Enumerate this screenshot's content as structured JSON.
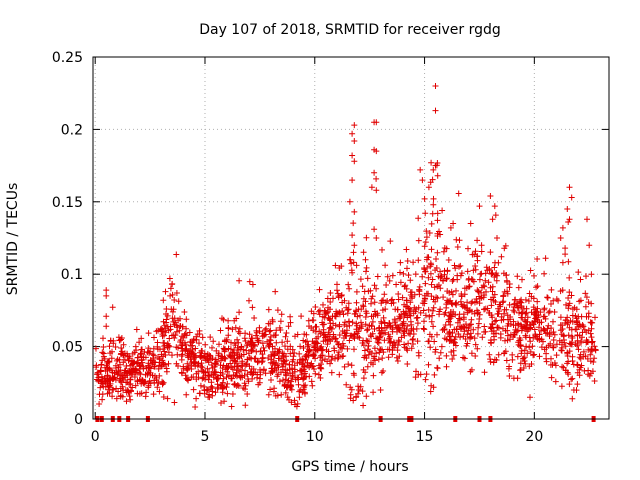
{
  "chart_data": {
    "type": "scatter",
    "title": "Day 107 of 2018, SRMTID for receiver rgdg",
    "xlabel": "GPS time / hours",
    "ylabel": "SRMTID / TECUs",
    "xlim": [
      -0.1,
      23.4
    ],
    "ylim": [
      0,
      0.25
    ],
    "xticks": [
      0,
      5,
      10,
      15,
      20
    ],
    "xtick_labels": [
      "0",
      "5",
      "10",
      "15",
      "20"
    ],
    "yticks": [
      0,
      0.05,
      0.1,
      0.15,
      0.2,
      0.25
    ],
    "ytick_labels": [
      "0",
      "0.05",
      "0.1",
      "0.15",
      "0.2",
      "0.25"
    ],
    "grid": true,
    "marker": "plus",
    "color": "#e00000",
    "zero_markers_x": [
      0.1,
      0.3,
      0.8,
      1.1,
      1.5,
      2.4,
      9.2,
      13.0,
      14.3,
      14.4,
      16.4,
      17.5,
      18.0,
      22.7
    ],
    "envelope": {
      "x": [
        0,
        1,
        2,
        3,
        3.5,
        4,
        5,
        6,
        7,
        8,
        9,
        9.5,
        10,
        11,
        11.7,
        12,
        12.5,
        13,
        14,
        15,
        15.5,
        16,
        17,
        18,
        18.5,
        19,
        20,
        21,
        21.5,
        22,
        22.8
      ],
      "mean": [
        0.03,
        0.032,
        0.03,
        0.04,
        0.065,
        0.045,
        0.03,
        0.038,
        0.042,
        0.045,
        0.03,
        0.033,
        0.05,
        0.06,
        0.06,
        0.06,
        0.055,
        0.06,
        0.065,
        0.085,
        0.08,
        0.072,
        0.075,
        0.08,
        0.07,
        0.06,
        0.065,
        0.05,
        0.055,
        0.055,
        0.05
      ],
      "spread": [
        0.012,
        0.013,
        0.012,
        0.015,
        0.022,
        0.016,
        0.013,
        0.015,
        0.016,
        0.016,
        0.014,
        0.014,
        0.016,
        0.018,
        0.03,
        0.035,
        0.03,
        0.02,
        0.02,
        0.03,
        0.04,
        0.025,
        0.022,
        0.025,
        0.025,
        0.018,
        0.018,
        0.018,
        0.03,
        0.02,
        0.015
      ]
    },
    "outliers": [
      {
        "x": 0.5,
        "y": 0.089
      },
      {
        "x": 0.5,
        "y": 0.085
      },
      {
        "x": 0.5,
        "y": 0.071
      },
      {
        "x": 0.5,
        "y": 0.064
      },
      {
        "x": 3.4,
        "y": 0.097
      },
      {
        "x": 3.5,
        "y": 0.093
      },
      {
        "x": 3.2,
        "y": 0.088
      },
      {
        "x": 3.1,
        "y": 0.082
      },
      {
        "x": 8.2,
        "y": 0.088
      },
      {
        "x": 9.3,
        "y": 0.015
      },
      {
        "x": 9.1,
        "y": 0.01
      },
      {
        "x": 11.7,
        "y": 0.197
      },
      {
        "x": 11.8,
        "y": 0.203
      },
      {
        "x": 11.8,
        "y": 0.192
      },
      {
        "x": 11.7,
        "y": 0.182
      },
      {
        "x": 11.8,
        "y": 0.178
      },
      {
        "x": 11.7,
        "y": 0.165
      },
      {
        "x": 11.6,
        "y": 0.15
      },
      {
        "x": 11.8,
        "y": 0.143
      },
      {
        "x": 11.7,
        "y": 0.127
      },
      {
        "x": 11.8,
        "y": 0.12
      },
      {
        "x": 11.6,
        "y": 0.11
      },
      {
        "x": 11.7,
        "y": 0.101
      },
      {
        "x": 12.7,
        "y": 0.205
      },
      {
        "x": 12.8,
        "y": 0.205
      },
      {
        "x": 12.7,
        "y": 0.186
      },
      {
        "x": 12.8,
        "y": 0.185
      },
      {
        "x": 12.7,
        "y": 0.17
      },
      {
        "x": 12.6,
        "y": 0.16
      },
      {
        "x": 12.8,
        "y": 0.158
      },
      {
        "x": 12.7,
        "y": 0.131
      },
      {
        "x": 12.8,
        "y": 0.125
      },
      {
        "x": 13.9,
        "y": 0.108
      },
      {
        "x": 14.2,
        "y": 0.104
      },
      {
        "x": 15.5,
        "y": 0.23
      },
      {
        "x": 15.5,
        "y": 0.213
      },
      {
        "x": 15.3,
        "y": 0.177
      },
      {
        "x": 15.5,
        "y": 0.175
      },
      {
        "x": 15.4,
        "y": 0.172
      },
      {
        "x": 15.6,
        "y": 0.168
      },
      {
        "x": 14.8,
        "y": 0.172
      },
      {
        "x": 14.9,
        "y": 0.165
      },
      {
        "x": 15.2,
        "y": 0.16
      },
      {
        "x": 15.0,
        "y": 0.152
      },
      {
        "x": 15.4,
        "y": 0.148
      },
      {
        "x": 15.6,
        "y": 0.142
      },
      {
        "x": 15.8,
        "y": 0.144
      },
      {
        "x": 16.2,
        "y": 0.132
      },
      {
        "x": 16.3,
        "y": 0.135
      },
      {
        "x": 17.1,
        "y": 0.135
      },
      {
        "x": 17.5,
        "y": 0.147
      },
      {
        "x": 18.0,
        "y": 0.154
      },
      {
        "x": 18.2,
        "y": 0.147
      },
      {
        "x": 18.1,
        "y": 0.138
      },
      {
        "x": 18.3,
        "y": 0.125
      },
      {
        "x": 18.5,
        "y": 0.112
      },
      {
        "x": 15.3,
        "y": 0.023
      },
      {
        "x": 17.6,
        "y": 0.12
      },
      {
        "x": 21.6,
        "y": 0.16
      },
      {
        "x": 21.7,
        "y": 0.153
      },
      {
        "x": 21.5,
        "y": 0.145
      },
      {
        "x": 21.6,
        "y": 0.138
      },
      {
        "x": 21.3,
        "y": 0.132
      },
      {
        "x": 21.2,
        "y": 0.125
      },
      {
        "x": 21.4,
        "y": 0.118
      },
      {
        "x": 21.3,
        "y": 0.108
      },
      {
        "x": 22.4,
        "y": 0.138
      },
      {
        "x": 22.5,
        "y": 0.12
      },
      {
        "x": 22.6,
        "y": 0.1
      },
      {
        "x": 19.8,
        "y": 0.015
      },
      {
        "x": 21.8,
        "y": 0.02
      },
      {
        "x": 13.0,
        "y": 0.02
      },
      {
        "x": 5.2,
        "y": 0.015
      }
    ],
    "n_scatter": 2300,
    "seed": 107
  }
}
